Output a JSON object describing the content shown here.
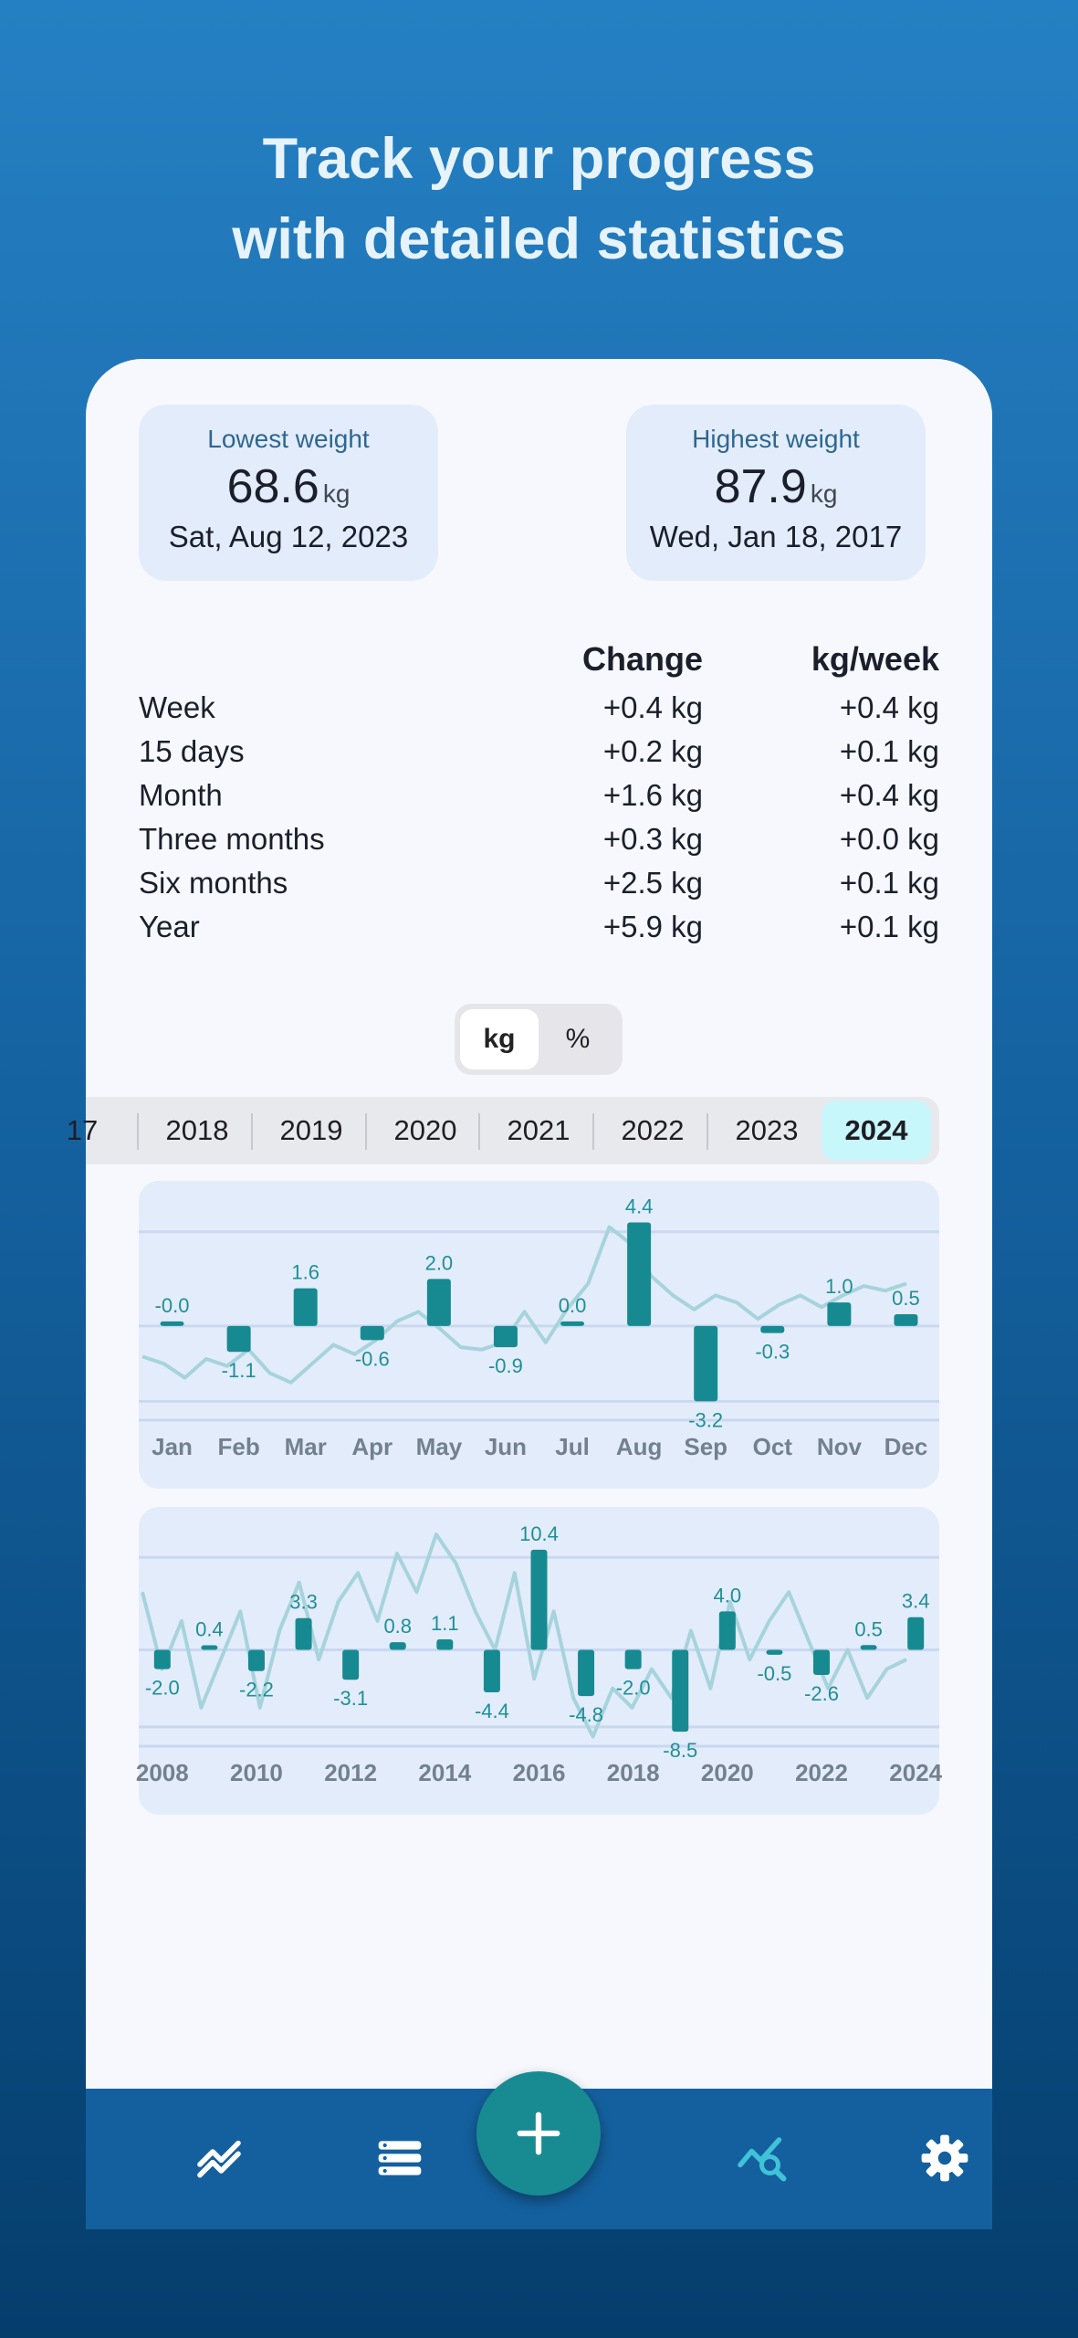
{
  "headline": {
    "line1": "Track your progress",
    "line2": "with detailed statistics"
  },
  "lowest": {
    "label": "Lowest weight",
    "value": "68.6",
    "unit": "kg",
    "date": "Sat, Aug 12, 2023"
  },
  "highest": {
    "label": "Highest weight",
    "value": "87.9",
    "unit": "kg",
    "date": "Wed, Jan 18, 2017"
  },
  "changes": {
    "headers": [
      "Change",
      "kg/week"
    ],
    "rows": [
      {
        "period": "Week",
        "change": "+0.4 kg",
        "per_week": "+0.4 kg"
      },
      {
        "period": "15 days",
        "change": "+0.2 kg",
        "per_week": "+0.1 kg"
      },
      {
        "period": "Month",
        "change": "+1.6 kg",
        "per_week": "+0.4 kg"
      },
      {
        "period": "Three months",
        "change": "+0.3 kg",
        "per_week": "+0.0 kg"
      },
      {
        "period": "Six months",
        "change": "+2.5 kg",
        "per_week": "+0.1 kg"
      },
      {
        "period": "Year",
        "change": "+5.9 kg",
        "per_week": "+0.1 kg"
      }
    ]
  },
  "unit_toggle": {
    "options": [
      "kg",
      "%"
    ],
    "selected": "kg"
  },
  "years": {
    "tabs": [
      "17",
      "2018",
      "2019",
      "2020",
      "2021",
      "2022",
      "2023",
      "2024"
    ],
    "selected": "2024"
  },
  "nav": {
    "icons": [
      "trend-chart-icon",
      "list-icon",
      "add-icon",
      "stats-search-icon",
      "gear-icon"
    ],
    "active": "stats-search-icon"
  },
  "colors": {
    "bar": "#178a91",
    "trend": "#a6d3dc",
    "card": "#e3ecfb",
    "accent": "#40c2d8"
  },
  "chart_data": [
    {
      "type": "bar",
      "categories": [
        "Jan",
        "Feb",
        "Mar",
        "Apr",
        "May",
        "Jun",
        "Jul",
        "Aug",
        "Sep",
        "Oct",
        "Nov",
        "Dec"
      ],
      "values": [
        -0.0,
        -1.1,
        1.6,
        -0.6,
        2.0,
        -0.9,
        0.0,
        4.4,
        -3.2,
        -0.3,
        1.0,
        0.5
      ],
      "labels": [
        "-0.0",
        "-1.1",
        "1.6",
        "-0.6",
        "2.0",
        "-0.9",
        "0.0",
        "4.4",
        "-3.2",
        "-0.3",
        "1.0",
        "0.5"
      ],
      "ylim": [
        -4,
        5
      ],
      "trend": [
        -1.3,
        -1.6,
        -2.2,
        -1.4,
        -1.7,
        -1.0,
        -2.0,
        -2.4,
        -1.6,
        -0.8,
        -1.2,
        -0.6,
        0.2,
        0.6,
        -0.1,
        -0.9,
        -1.0,
        -0.7,
        0.6,
        -0.7,
        0.7,
        1.8,
        4.2,
        3.5,
        2.1,
        1.3,
        0.7,
        1.3,
        1.0,
        0.3,
        0.9,
        1.3,
        0.8,
        1.3,
        1.7,
        1.5,
        1.8
      ],
      "grid": true
    },
    {
      "type": "bar",
      "categories": [
        "2008",
        "2009",
        "2010",
        "2011",
        "2012",
        "2013",
        "2014",
        "2015",
        "2016",
        "2017",
        "2018",
        "2019",
        "2020",
        "2021",
        "2022",
        "2023",
        "2024"
      ],
      "tick_labels": [
        "2008",
        "2010",
        "2012",
        "2014",
        "2016",
        "2018",
        "2020",
        "2022",
        "2024"
      ],
      "values": [
        -2.0,
        0.4,
        -2.2,
        3.3,
        -3.1,
        0.8,
        1.1,
        -4.4,
        10.4,
        -4.8,
        -2.0,
        -8.5,
        4.0,
        -0.5,
        -2.6,
        0.5,
        3.4
      ],
      "labels": [
        "-2.0",
        "0.4",
        "-2.2",
        "3.3",
        "-3.1",
        "0.8",
        "1.1",
        "-4.4",
        "10.4",
        "-4.8",
        "-2.0",
        "-8.5",
        "4.0",
        "-0.5",
        "-2.6",
        "0.5",
        "3.4"
      ],
      "ylim": [
        -10,
        12
      ],
      "trend": [
        6,
        -2,
        3,
        -6,
        -1,
        4,
        -6,
        2,
        7,
        -1,
        5,
        8,
        3,
        10,
        6,
        12,
        9,
        4,
        0,
        8,
        -3,
        4,
        -5,
        -9,
        -4,
        -6,
        -2,
        -5,
        2,
        -4,
        5,
        -1,
        3,
        6,
        1,
        -4,
        0,
        -5,
        -2,
        -1
      ],
      "grid": true
    }
  ]
}
